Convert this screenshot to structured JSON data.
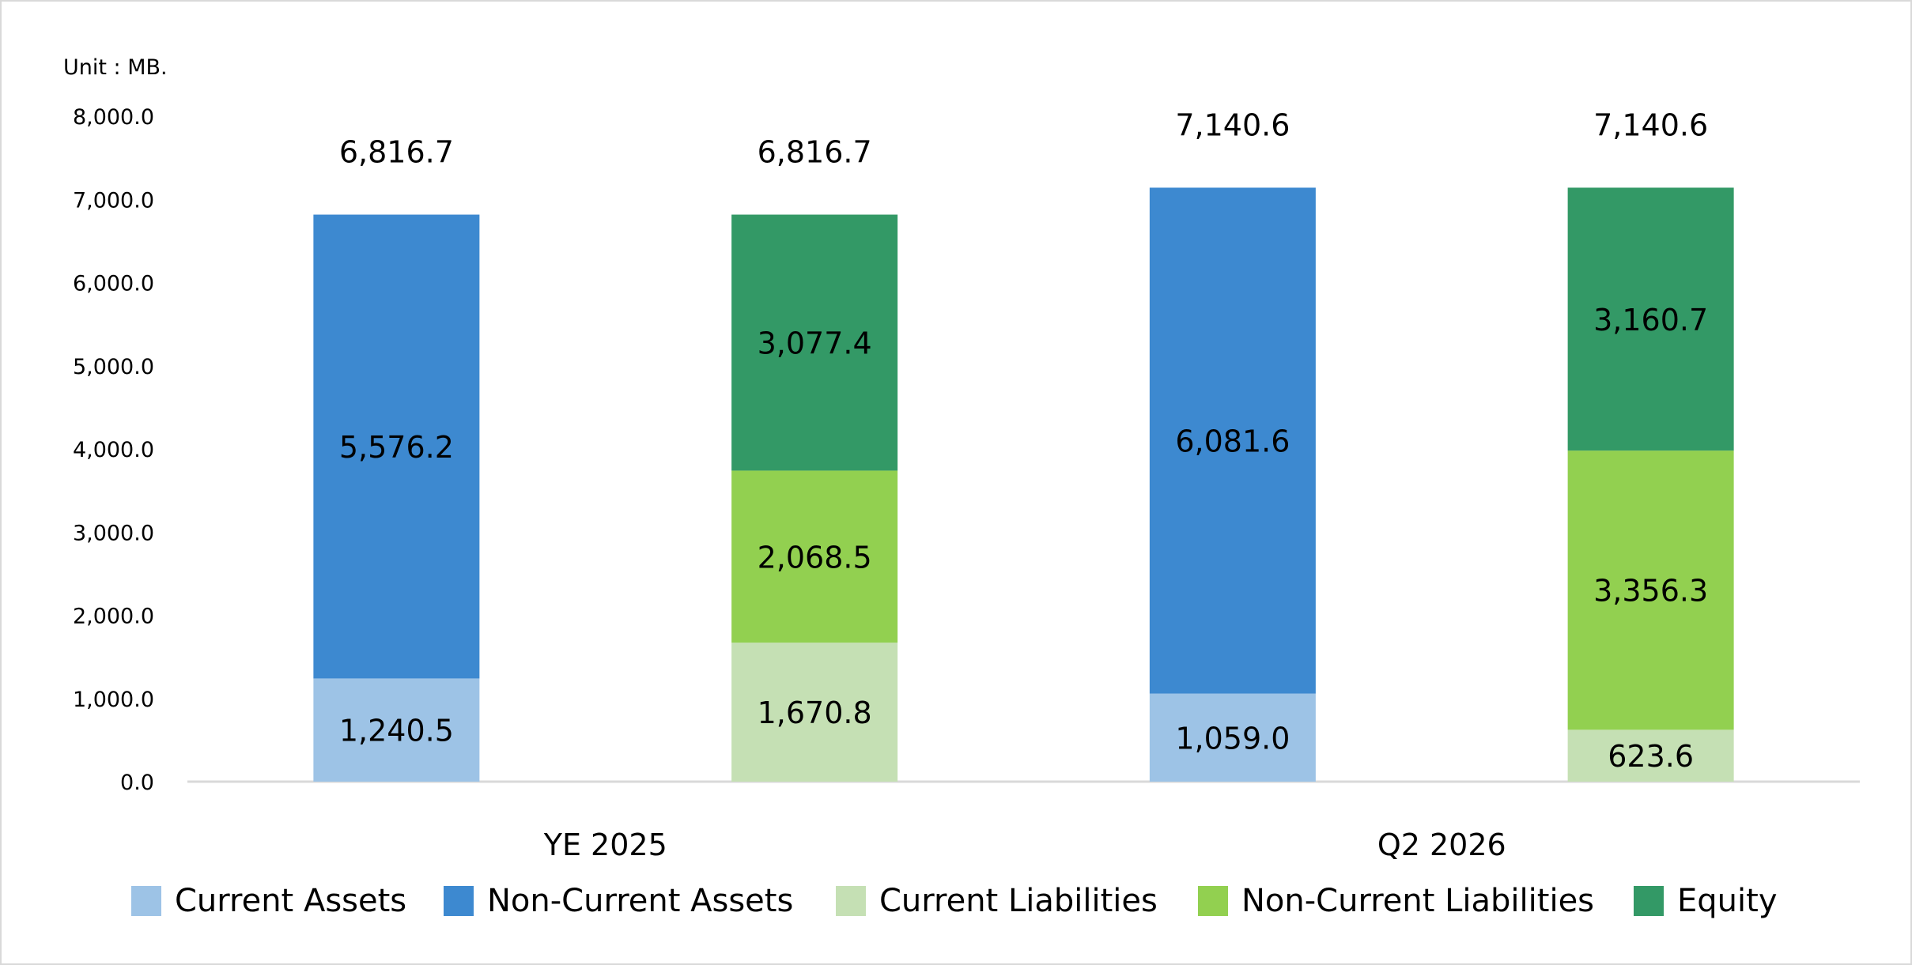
{
  "chart_data": {
    "type": "bar",
    "stacked": true,
    "unit_label": "Unit : MB.",
    "ylim": [
      0,
      8000
    ],
    "y_ticks": [
      "0.0",
      "1,000.0",
      "2,000.0",
      "3,000.0",
      "4,000.0",
      "5,000.0",
      "6,000.0",
      "7,000.0",
      "8,000.0"
    ],
    "grid": false,
    "legend_position": "bottom",
    "categories": [
      "YE 2025",
      "Q2 2026"
    ],
    "series": [
      {
        "name": "Current Assets",
        "color": "#9dc3e6"
      },
      {
        "name": "Non-Current Assets",
        "color": "#3d89d0"
      },
      {
        "name": "Current Liabilities",
        "color": "#c5e0b4"
      },
      {
        "name": "Non-Current Liabilities",
        "color": "#92d050"
      },
      {
        "name": "Equity",
        "color": "#339966"
      }
    ],
    "bars": [
      {
        "category": "YE 2025",
        "group": "assets",
        "total": 6816.7,
        "total_label": "6,816.7",
        "segments": [
          {
            "series": "Current Assets",
            "value": 1240.5,
            "label": "1,240.5"
          },
          {
            "series": "Non-Current Assets",
            "value": 5576.2,
            "label": "5,576.2"
          }
        ]
      },
      {
        "category": "YE 2025",
        "group": "liabilities_equity",
        "total": 6816.7,
        "total_label": "6,816.7",
        "segments": [
          {
            "series": "Current Liabilities",
            "value": 1670.8,
            "label": "1,670.8"
          },
          {
            "series": "Non-Current Liabilities",
            "value": 2068.5,
            "label": "2,068.5"
          },
          {
            "series": "Equity",
            "value": 3077.4,
            "label": "3,077.4"
          }
        ]
      },
      {
        "category": "Q2 2026",
        "group": "assets",
        "total": 7140.6,
        "total_label": "7,140.6",
        "segments": [
          {
            "series": "Current Assets",
            "value": 1059.0,
            "label": "1,059.0"
          },
          {
            "series": "Non-Current Assets",
            "value": 6081.6,
            "label": "6,081.6"
          }
        ]
      },
      {
        "category": "Q2 2026",
        "group": "liabilities_equity",
        "total": 7140.6,
        "total_label": "7,140.6",
        "segments": [
          {
            "series": "Current Liabilities",
            "value": 623.6,
            "label": "623.6"
          },
          {
            "series": "Non-Current Liabilities",
            "value": 3356.3,
            "label": "3,356.3"
          },
          {
            "series": "Equity",
            "value": 3160.7,
            "label": "3,160.7"
          }
        ]
      }
    ]
  }
}
